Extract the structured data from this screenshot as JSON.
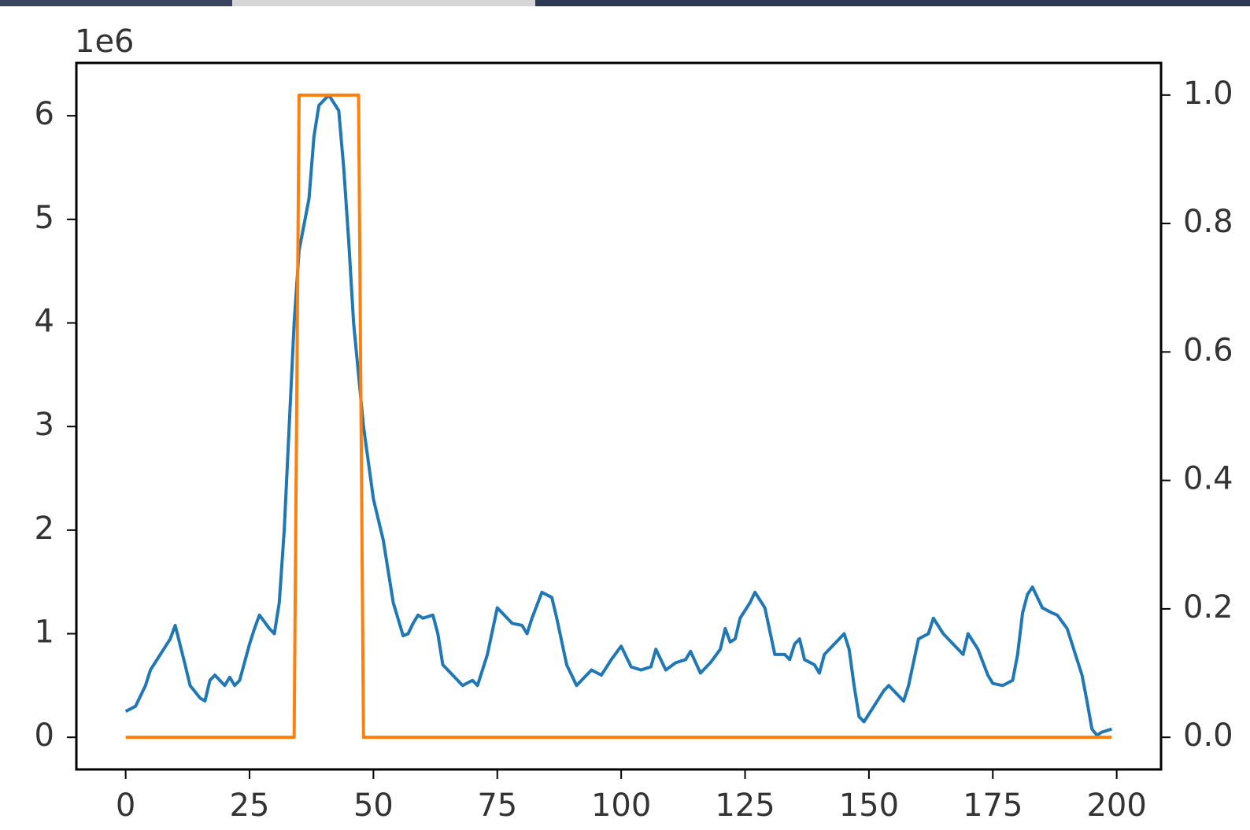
{
  "chart_data": {
    "type": "line",
    "offset_label": "1e6",
    "xlim": [
      -9.95,
      208.95
    ],
    "xticks": [
      0,
      25,
      50,
      75,
      100,
      125,
      150,
      175,
      200
    ],
    "ylim": [
      -0.31,
      6.51
    ],
    "yticks": [
      0,
      1,
      2,
      3,
      4,
      5,
      6
    ],
    "y2lim": [
      -0.05,
      1.05
    ],
    "y2ticks": [
      {
        "value": 0,
        "label": "0.0"
      },
      {
        "value": 0.2,
        "label": "0.2"
      },
      {
        "value": 0.4,
        "label": "0.4"
      },
      {
        "value": 0.6,
        "label": "0.6"
      },
      {
        "value": 0.8,
        "label": "0.8"
      },
      {
        "value": 1,
        "label": "1.0"
      }
    ],
    "series": [
      {
        "color": "#1f77b4",
        "x": [
          0,
          2,
          4,
          5,
          7,
          9,
          10,
          12,
          13,
          15,
          16,
          17,
          18,
          20,
          21,
          22,
          23,
          25,
          26,
          27,
          29,
          30,
          31,
          32,
          33,
          34,
          35,
          37,
          38,
          39,
          41,
          43,
          44,
          45,
          46,
          47,
          48,
          50,
          52,
          54,
          56,
          57,
          58,
          59,
          60,
          62,
          63,
          64,
          66,
          68,
          70,
          71,
          73,
          75,
          76,
          78,
          80,
          81,
          82,
          84,
          86,
          87,
          89,
          91,
          93,
          94,
          96,
          98,
          100,
          102,
          104,
          106,
          107,
          109,
          111,
          113,
          114,
          116,
          118,
          120,
          121,
          122,
          123,
          124,
          126,
          127,
          129,
          131,
          133,
          134,
          135,
          136,
          137,
          139,
          140,
          141,
          142,
          144,
          145,
          146,
          147,
          148,
          149,
          151,
          153,
          154,
          156,
          157,
          158,
          160,
          162,
          163,
          165,
          166,
          168,
          169,
          170,
          172,
          174,
          175,
          177,
          179,
          180,
          181,
          182,
          183,
          185,
          187,
          188,
          190,
          191,
          192,
          193,
          194,
          195,
          196,
          197,
          199
        ],
        "values": [
          0.25,
          0.3,
          0.5,
          0.65,
          0.8,
          0.95,
          1.08,
          0.7,
          0.5,
          0.38,
          0.35,
          0.55,
          0.6,
          0.5,
          0.58,
          0.5,
          0.55,
          0.9,
          1.05,
          1.18,
          1.05,
          1.0,
          1.3,
          2.0,
          3.0,
          4.0,
          4.7,
          5.2,
          5.8,
          6.1,
          6.2,
          6.05,
          5.5,
          4.8,
          4.0,
          3.5,
          3.0,
          2.3,
          1.9,
          1.3,
          0.98,
          1.0,
          1.1,
          1.18,
          1.15,
          1.18,
          1.0,
          0.7,
          0.6,
          0.5,
          0.55,
          0.5,
          0.8,
          1.25,
          1.2,
          1.1,
          1.08,
          1.0,
          1.15,
          1.4,
          1.35,
          1.15,
          0.7,
          0.5,
          0.6,
          0.65,
          0.6,
          0.75,
          0.88,
          0.68,
          0.65,
          0.68,
          0.85,
          0.65,
          0.72,
          0.75,
          0.83,
          0.62,
          0.72,
          0.85,
          1.05,
          0.92,
          0.95,
          1.15,
          1.3,
          1.4,
          1.25,
          0.8,
          0.8,
          0.75,
          0.9,
          0.95,
          0.75,
          0.7,
          0.62,
          0.8,
          0.85,
          0.95,
          1.0,
          0.85,
          0.5,
          0.2,
          0.15,
          0.3,
          0.45,
          0.5,
          0.4,
          0.35,
          0.5,
          0.95,
          1.0,
          1.15,
          1.0,
          0.95,
          0.85,
          0.8,
          1.0,
          0.85,
          0.6,
          0.52,
          0.5,
          0.55,
          0.8,
          1.2,
          1.38,
          1.45,
          1.25,
          1.2,
          1.18,
          1.05,
          0.9,
          0.75,
          0.6,
          0.35,
          0.08,
          0.02,
          0.05,
          0.08
        ]
      },
      {
        "color": "#ff7f0e",
        "axis": "y2",
        "x": [
          0,
          34,
          35,
          47,
          48,
          199
        ],
        "values": [
          0,
          0,
          1,
          1,
          0,
          0
        ]
      }
    ]
  }
}
